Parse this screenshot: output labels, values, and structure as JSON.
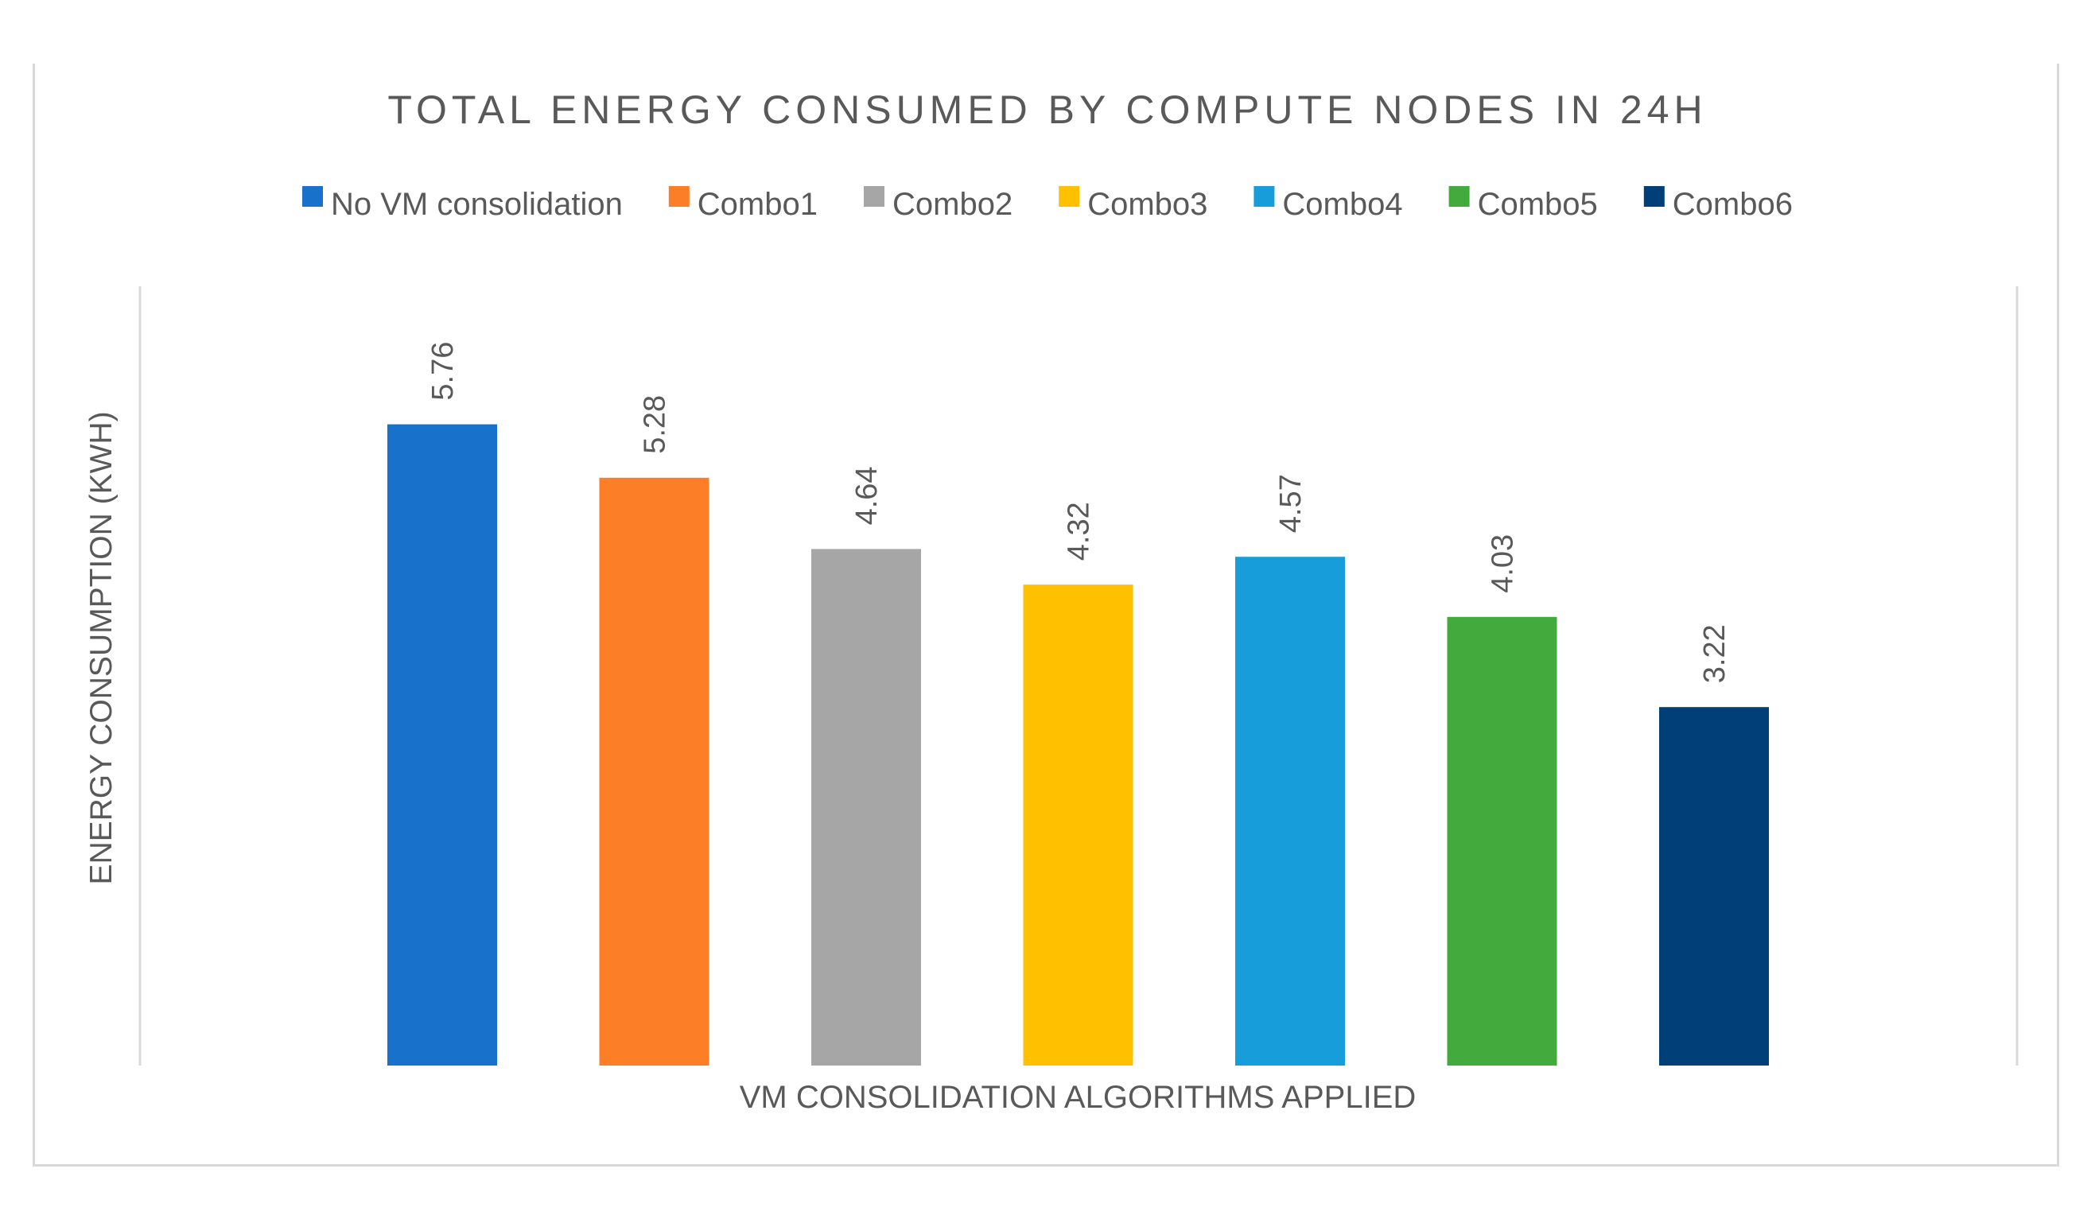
{
  "chart_data": {
    "type": "bar",
    "title": "TOTAL ENERGY CONSUMED BY COMPUTE NODES IN 24H",
    "xlabel": "VM CONSOLIDATION ALGORITHMS APPLIED",
    "ylabel": "ENERGY CONSUMPTION (KWH)",
    "ylim": [
      0,
      7
    ],
    "grid": false,
    "legend_position": "top",
    "series": [
      {
        "name": "No VM consolidation",
        "value": 5.76,
        "label": "5.76",
        "color": "#1871cb"
      },
      {
        "name": "Combo1",
        "value": 5.28,
        "label": "5.28",
        "color": "#fc7f27"
      },
      {
        "name": "Combo2",
        "value": 4.64,
        "label": "4.64",
        "color": "#a6a6a6"
      },
      {
        "name": "Combo3",
        "value": 4.32,
        "label": "4.32",
        "color": "#ffc000"
      },
      {
        "name": "Combo4",
        "value": 4.57,
        "label": "4.57",
        "color": "#179dd9"
      },
      {
        "name": "Combo5",
        "value": 4.03,
        "label": "4.03",
        "color": "#43ab3d"
      },
      {
        "name": "Combo6",
        "value": 3.22,
        "label": "3.22",
        "color": "#003f78"
      }
    ]
  }
}
